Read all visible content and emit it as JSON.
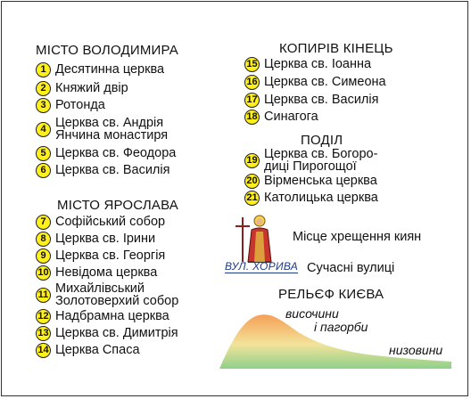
{
  "sections": {
    "volodymyr": {
      "title": "МІСТО ВОЛОДИМИРА",
      "items": [
        {
          "num": "1",
          "label": "Десятинна церква"
        },
        {
          "num": "2",
          "label": "Княжий двір"
        },
        {
          "num": "3",
          "label": "Ротонда"
        },
        {
          "num": "4",
          "label_line1": "Церква св. Андрія",
          "label_line2": "Янчина монастиря"
        },
        {
          "num": "5",
          "label": "Церква св. Феодора"
        },
        {
          "num": "6",
          "label": "Церква св. Василія"
        }
      ]
    },
    "yaroslav": {
      "title": "МІСТО ЯРОСЛАВА",
      "items": [
        {
          "num": "7",
          "label": "Софійський собор"
        },
        {
          "num": "8",
          "label": "Церква св. Ірини"
        },
        {
          "num": "9",
          "label": "Церква св. Георгія"
        },
        {
          "num": "10",
          "label": "Невідома церква"
        },
        {
          "num": "11",
          "label_line1": "Михайлівський",
          "label_line2": "Золотоверхий собор"
        },
        {
          "num": "12",
          "label": "Надбрамна церква"
        },
        {
          "num": "13",
          "label": "Церква св. Димитрія"
        },
        {
          "num": "14",
          "label": "Церква Спаса"
        }
      ]
    },
    "kopyriv": {
      "title": "КОПИРІВ КІНЕЦЬ",
      "items": [
        {
          "num": "15",
          "label": "Церква св. Іоанна"
        },
        {
          "num": "16",
          "label": "Церква св. Симеона"
        },
        {
          "num": "17",
          "label": "Церква св. Василія"
        },
        {
          "num": "18",
          "label": "Синагога"
        }
      ]
    },
    "podil": {
      "title": "ПОДІЛ",
      "items": [
        {
          "num": "19",
          "label_line1": "Церква св. Богоро-",
          "label_line2": "диці Пирогощої"
        },
        {
          "num": "20",
          "label": "Вірменська церква"
        },
        {
          "num": "21",
          "label": "Католицька церква"
        }
      ]
    }
  },
  "legend": {
    "baptism": "Місце хрещення киян",
    "street_sample": "ВУЛ. ХОРИВА",
    "streets": "Сучасні вулиці",
    "relief_title": "РЕЛЬЄФ КИЄВА",
    "highlands_line1": "височини",
    "highlands_line2": "і пагорби",
    "lowlands": "низовини"
  },
  "colors": {
    "badge_fill": "#ffef1a",
    "relief_top": "#f5a056",
    "relief_mid": "#f3e39a",
    "relief_bottom": "#8fd08a",
    "street_color": "#1f3a8a"
  }
}
